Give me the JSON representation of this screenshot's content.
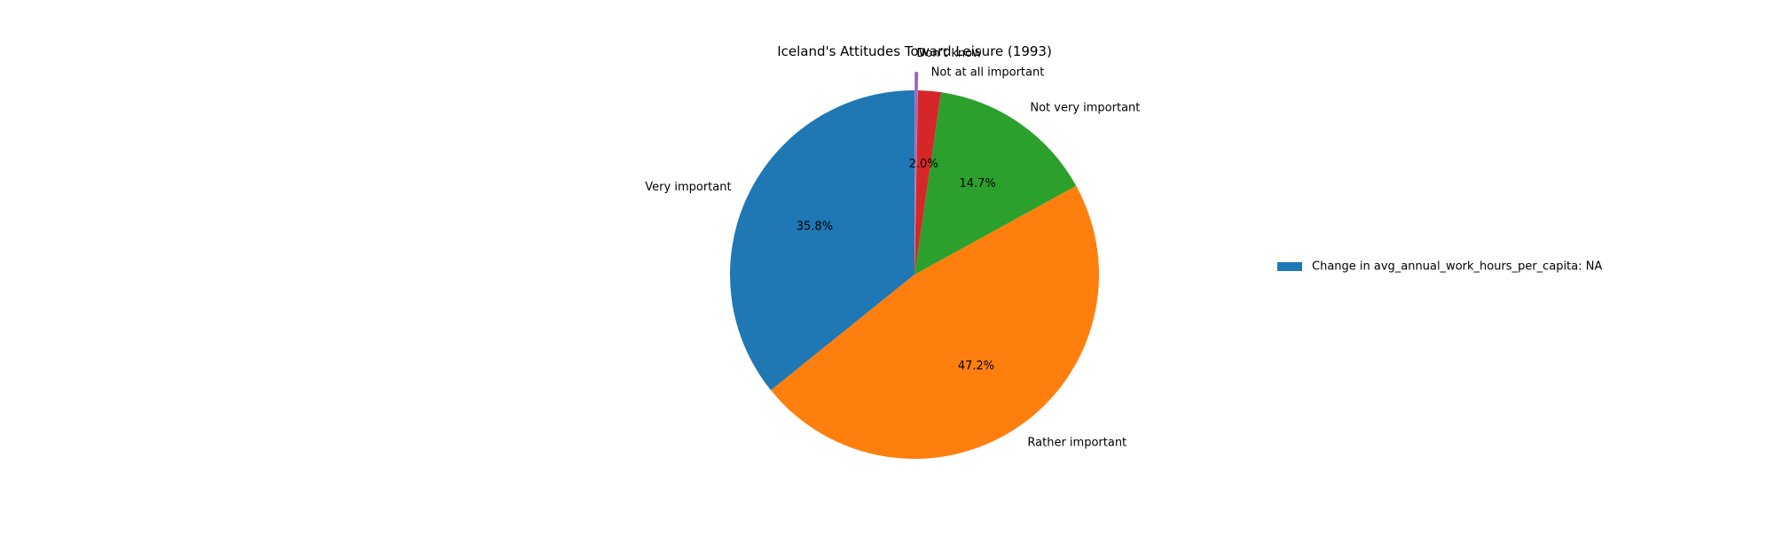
{
  "chart_data": {
    "type": "pie",
    "title": "Iceland's Attitudes Toward Leisure (1993)",
    "start_angle": 90,
    "direction": "counterclockwise",
    "slices": [
      {
        "label": "Very important",
        "value": 35.8,
        "pct_label": "35.8%",
        "color": "#1f77b4"
      },
      {
        "label": "Rather important",
        "value": 47.2,
        "pct_label": "47.2%",
        "color": "#ff7f0e"
      },
      {
        "label": "Not very important",
        "value": 14.7,
        "pct_label": "14.7%",
        "color": "#2ca02c"
      },
      {
        "label": "Not at all important",
        "value": 2.0,
        "pct_label": "2.0%",
        "color": "#d62728"
      },
      {
        "label": "Don't know",
        "value": 0.3,
        "pct_label": "",
        "color": "#9467bd",
        "exploded": true
      }
    ],
    "legend": {
      "placement": "center-right",
      "entries": [
        {
          "label": "Change in avg_annual_work_hours_per_capita: NA",
          "color": "#1f77b4"
        }
      ]
    }
  }
}
